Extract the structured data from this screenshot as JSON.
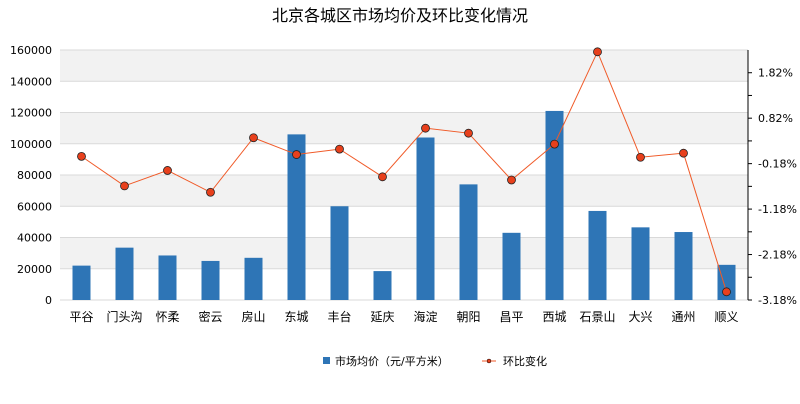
{
  "chart_data": {
    "type": "bar",
    "title": "北京各城区市场均价及环比变化情况",
    "categories": [
      "平谷",
      "门头沟",
      "怀柔",
      "密云",
      "房山",
      "东城",
      "丰台",
      "延庆",
      "海淀",
      "朝阳",
      "昌平",
      "西城",
      "石景山",
      "大兴",
      "通州",
      "顺义"
    ],
    "series": [
      {
        "name": "市场均价（元/平方米）",
        "kind": "bar",
        "axis": "left",
        "color": "#2e75b6",
        "values": [
          22000,
          33500,
          28500,
          25000,
          27000,
          106000,
          60000,
          18500,
          104000,
          74000,
          43000,
          121000,
          57000,
          46500,
          43500,
          22500
        ]
      },
      {
        "name": "环比变化",
        "kind": "line",
        "axis": "right",
        "color": "#f05a28",
        "marker_color": "#e8401c",
        "values": [
          -0.02,
          -0.67,
          -0.33,
          -0.81,
          0.39,
          0.02,
          0.14,
          -0.47,
          0.6,
          0.49,
          -0.54,
          0.25,
          2.28,
          -0.04,
          0.05,
          -3.0
        ]
      }
    ],
    "left_axis": {
      "ylim": [
        0,
        160000
      ],
      "ticks": [
        "0",
        "20000",
        "40000",
        "60000",
        "80000",
        "100000",
        "120000",
        "140000",
        "160000"
      ]
    },
    "right_axis": {
      "ylim": [
        -3.18,
        2.32
      ],
      "ticks": [
        {
          "value": -3.18,
          "label": "-3.18%"
        },
        {
          "value": -2.18,
          "label": "-2.18%"
        },
        {
          "value": -1.18,
          "label": "-1.18%"
        },
        {
          "value": -0.18,
          "label": "-0.18%"
        },
        {
          "value": 0.82,
          "label": "0.82%"
        },
        {
          "value": 1.82,
          "label": "1.82%"
        }
      ]
    },
    "grid": true,
    "legend": "bottom"
  }
}
